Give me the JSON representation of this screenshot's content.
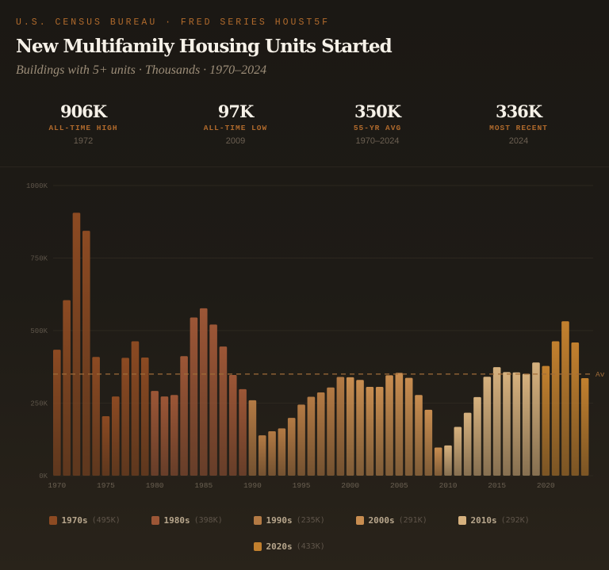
{
  "header": {
    "kicker": "U.S. CENSUS BUREAU · FRED SERIES HOUST5F",
    "title": "New Multifamily Housing Units Started",
    "subtitle": "Buildings with 5+ units · Thousands · 1970–2024"
  },
  "stats": [
    {
      "value": "906K",
      "label": "ALL-TIME HIGH",
      "sub": "1972"
    },
    {
      "value": "97K",
      "label": "ALL-TIME LOW",
      "sub": "2009"
    },
    {
      "value": "350K",
      "label": "55-YR AVG",
      "sub": "1970–2024"
    },
    {
      "value": "336K",
      "label": "MOST RECENT",
      "sub": "2024"
    }
  ],
  "chart_data": {
    "type": "bar",
    "title": "New Multifamily Housing Units Started",
    "ylabel": "Thousands",
    "ylim": [
      0,
      1000
    ],
    "yticks": [
      {
        "v": 0,
        "label": "0K"
      },
      {
        "v": 250,
        "label": "250K"
      },
      {
        "v": 500,
        "label": "500K"
      },
      {
        "v": 750,
        "label": "750K"
      },
      {
        "v": 1000,
        "label": "1000K"
      }
    ],
    "xticks": [
      1970,
      1975,
      1980,
      1985,
      1990,
      1995,
      2000,
      2005,
      2010,
      2015,
      2020
    ],
    "x": [
      1970,
      1971,
      1972,
      1973,
      1974,
      1975,
      1976,
      1977,
      1978,
      1979,
      1980,
      1981,
      1982,
      1983,
      1984,
      1985,
      1986,
      1987,
      1988,
      1989,
      1990,
      1991,
      1992,
      1993,
      1994,
      1995,
      1996,
      1997,
      1998,
      1999,
      2000,
      2001,
      2002,
      2003,
      2004,
      2005,
      2006,
      2007,
      2008,
      2009,
      2010,
      2011,
      2012,
      2013,
      2014,
      2015,
      2016,
      2017,
      2018,
      2019,
      2020,
      2021,
      2022,
      2023,
      2024
    ],
    "values": [
      434,
      605,
      906,
      844,
      409,
      205,
      273,
      406,
      463,
      407,
      292,
      273,
      278,
      412,
      545,
      577,
      521,
      445,
      347,
      298,
      260,
      139,
      153,
      163,
      199,
      245,
      272,
      287,
      304,
      340,
      339,
      330,
      306,
      306,
      346,
      354,
      337,
      278,
      227,
      97,
      104,
      168,
      217,
      271,
      341,
      374,
      357,
      356,
      351,
      390,
      378,
      463,
      532,
      459,
      336
    ],
    "average": {
      "value": 350,
      "label": "Av"
    },
    "grid": true,
    "legend_placement": "bottom",
    "series": [
      {
        "name": "1970s",
        "avg_label": "(495K)",
        "color": "#8c4a22"
      },
      {
        "name": "1980s",
        "avg_label": "(398K)",
        "color": "#9c5636"
      },
      {
        "name": "1990s",
        "avg_label": "(235K)",
        "color": "#b37a44"
      },
      {
        "name": "2000s",
        "avg_label": "(291K)",
        "color": "#c88d50"
      },
      {
        "name": "2010s",
        "avg_label": "(292K)",
        "color": "#d6b17e"
      },
      {
        "name": "2020s",
        "avg_label": "(433K)",
        "color": "#c2802e"
      }
    ]
  }
}
